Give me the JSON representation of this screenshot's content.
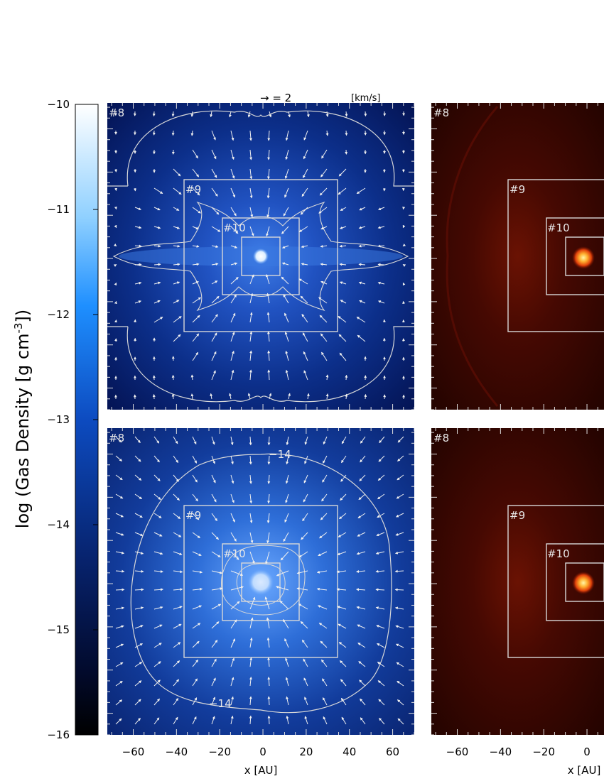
{
  "figure": {
    "vector_key": {
      "arrow_text": "→ = 2",
      "unit": "[km/s]"
    },
    "colorbar": {
      "ylabel_parts": [
        "log (Gas Density [g cm",
        "-3",
        "])"
      ],
      "ticks": [
        "−10",
        "−11",
        "−12",
        "−13",
        "−14",
        "−15",
        "−16"
      ]
    },
    "x_axis": {
      "label": "x [AU]",
      "ticks": [
        "−60",
        "−40",
        "−20",
        "0",
        "20",
        "40",
        "60"
      ]
    },
    "grid_labels": [
      "#8",
      "#9",
      "#10"
    ],
    "contour_labels": [
      "−14",
      "−14"
    ],
    "colors": {
      "density_high": "#9ad8ff",
      "density_low": "#00001a",
      "temp_core": "#ffe97a",
      "temp_bg": "#2a0400",
      "overlay": "#d8d8d8"
    }
  },
  "chart_data": [
    {
      "type": "heatmap",
      "panel": "top-left",
      "quantity": "gas density",
      "xlim": [
        -72,
        70
      ],
      "ylim": [
        -72,
        70
      ],
      "grid_levels": [
        "#8",
        "#9",
        "#10"
      ],
      "overlays": [
        "velocity vectors",
        "density contours",
        "nested grid boundaries"
      ]
    },
    {
      "type": "heatmap",
      "panel": "bottom-left",
      "quantity": "gas density",
      "xlim": [
        -72,
        70
      ],
      "ylim": [
        -72,
        70
      ],
      "grid_levels": [
        "#8",
        "#9",
        "#10"
      ],
      "contour_labels": [
        "−14",
        "−14"
      ],
      "overlays": [
        "velocity vectors",
        "density contours",
        "nested grid boundaries"
      ]
    },
    {
      "type": "heatmap",
      "panel": "top-right",
      "grid_levels": [
        "#8",
        "#9",
        "#10"
      ],
      "xlim": [
        -72,
        70
      ]
    },
    {
      "type": "heatmap",
      "panel": "bottom-right",
      "grid_levels": [
        "#8",
        "#9",
        "#10"
      ],
      "xlim": [
        -72,
        70
      ]
    }
  ]
}
